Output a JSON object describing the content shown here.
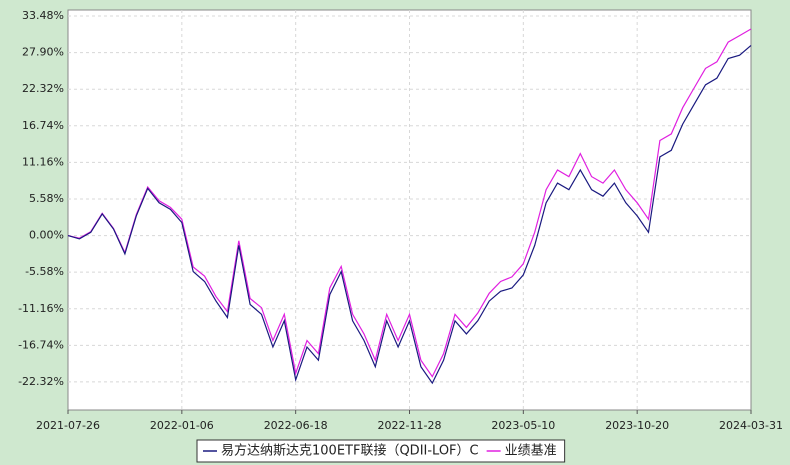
{
  "chart_data": {
    "type": "line",
    "categories": [
      "2021-07-26",
      null,
      null,
      null,
      null,
      null,
      null,
      null,
      null,
      null,
      "2022-01-06",
      null,
      null,
      null,
      null,
      null,
      null,
      null,
      null,
      null,
      "2022-06-18",
      null,
      null,
      null,
      null,
      null,
      null,
      null,
      null,
      null,
      "2022-11-28",
      null,
      null,
      null,
      null,
      null,
      null,
      null,
      null,
      null,
      "2023-05-10",
      null,
      null,
      null,
      null,
      null,
      null,
      null,
      null,
      null,
      "2023-10-20",
      null,
      null,
      null,
      null,
      null,
      null,
      null,
      null,
      null,
      "2024-03-31"
    ],
    "series": [
      {
        "name": "易方达纳斯达克100ETF联接（QDII-LOF）C",
        "color": "#1a1a80",
        "values": [
          0,
          -0.5,
          0.5,
          3.3,
          1.0,
          -2.8,
          3.0,
          7.2,
          5.0,
          4.0,
          2.0,
          -5.5,
          -7.0,
          -10,
          -12.5,
          -1.5,
          -10.5,
          -12,
          -17,
          -13,
          -22,
          -17,
          -19,
          -9,
          -5.5,
          -13,
          -16,
          -20,
          -13,
          -17,
          -13,
          -20,
          -22.5,
          -19,
          -13,
          -15,
          -13,
          -10,
          -8.5,
          -8,
          -6,
          -1.5,
          5,
          8,
          7,
          10,
          7,
          6,
          8,
          5,
          3,
          0.5,
          12,
          13,
          17,
          20,
          23,
          24,
          27,
          27.5,
          29
        ]
      },
      {
        "name": "业绩基准",
        "color": "#e020e0",
        "values": [
          0,
          -0.4,
          0.6,
          3.4,
          1.1,
          -2.6,
          3.2,
          7.4,
          5.3,
          4.3,
          2.5,
          -4.8,
          -6.2,
          -9.3,
          -11.6,
          -0.8,
          -9.6,
          -11,
          -16,
          -12,
          -21,
          -16,
          -18,
          -8,
          -4.7,
          -12,
          -15,
          -19,
          -12,
          -16,
          -12,
          -19,
          -21.5,
          -18,
          -12,
          -14,
          -11.8,
          -8.8,
          -7,
          -6.3,
          -4.3,
          0.5,
          7,
          10,
          9,
          12.5,
          9,
          8,
          10,
          7,
          5,
          2.5,
          14.5,
          15.5,
          19.5,
          22.5,
          25.5,
          26.5,
          29.5,
          30.5,
          31.5
        ]
      }
    ],
    "ylim": [
      -26.6,
      34.4
    ],
    "yticks": [
      {
        "value": 33.48,
        "label": "33.48%"
      },
      {
        "value": 27.9,
        "label": "27.90%"
      },
      {
        "value": 22.32,
        "label": "22.32%"
      },
      {
        "value": 16.74,
        "label": "16.74%"
      },
      {
        "value": 11.16,
        "label": "11.16%"
      },
      {
        "value": 5.58,
        "label": "5.58%"
      },
      {
        "value": 0,
        "label": "0.00%"
      },
      {
        "value": -5.58,
        "label": "-5.58%"
      },
      {
        "value": -11.16,
        "label": "-11.16%"
      },
      {
        "value": -16.74,
        "label": "-16.74%"
      },
      {
        "value": -22.32,
        "label": "-22.32%"
      }
    ],
    "grid": true
  }
}
